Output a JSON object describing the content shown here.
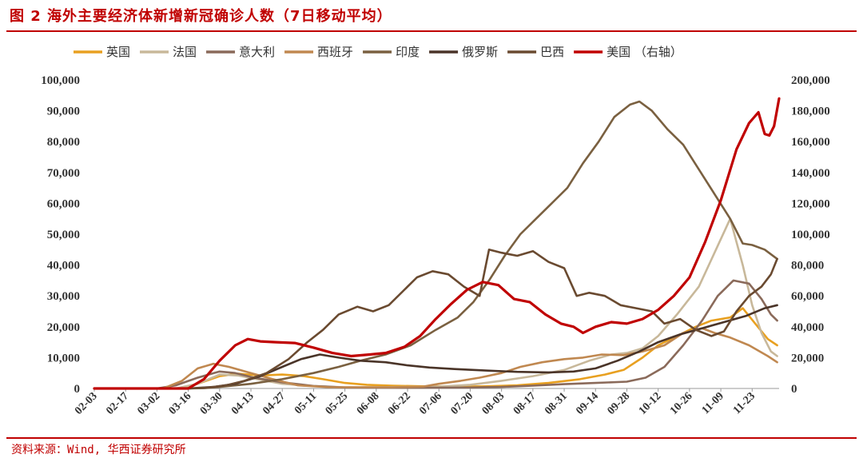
{
  "figure": {
    "title": "图 2   海外主要经济体新增新冠确诊人数（7日移动平均）",
    "source": "资料来源：Wind, 华西证券研究所"
  },
  "chart_data": {
    "type": "line",
    "title": "海外主要经济体新增新冠确诊人数（7日移动平均）",
    "ylim": [
      0,
      100000
    ],
    "y2lim": [
      0,
      200000
    ],
    "yticks": [
      "0",
      "10,000",
      "20,000",
      "30,000",
      "40,000",
      "50,000",
      "60,000",
      "70,000",
      "80,000",
      "90,000",
      "100,000"
    ],
    "y2ticks": [
      "0",
      "20,000",
      "40,000",
      "60,000",
      "80,000",
      "100,000",
      "120,000",
      "140,000",
      "160,000",
      "180,000",
      "200,000"
    ],
    "x_labels": [
      "02-03",
      "02-17",
      "03-02",
      "03-16",
      "03-30",
      "04-13",
      "04-27",
      "05-11",
      "05-25",
      "06-08",
      "06-22",
      "07-06",
      "07-20",
      "08-03",
      "08-17",
      "08-31",
      "09-14",
      "09-28",
      "10-12",
      "10-26",
      "11-09",
      "11-23"
    ],
    "x_range": [
      0,
      21.86
    ],
    "series": [
      {
        "name": "英国",
        "color": "#e8a020",
        "axis": "left",
        "points": [
          [
            0,
            0
          ],
          [
            2.8,
            0
          ],
          [
            3.3,
            1500
          ],
          [
            4.0,
            4000
          ],
          [
            4.6,
            4800
          ],
          [
            5.3,
            4200
          ],
          [
            6.0,
            4500
          ],
          [
            6.7,
            4000
          ],
          [
            7.3,
            3000
          ],
          [
            8.0,
            1800
          ],
          [
            8.7,
            1200
          ],
          [
            9.5,
            900
          ],
          [
            10.5,
            700
          ],
          [
            11.5,
            600
          ],
          [
            12.5,
            700
          ],
          [
            13.5,
            1000
          ],
          [
            14.5,
            1800
          ],
          [
            15.5,
            3000
          ],
          [
            16.3,
            4500
          ],
          [
            16.9,
            6000
          ],
          [
            17.5,
            10000
          ],
          [
            18.0,
            14000
          ],
          [
            18.6,
            17000
          ],
          [
            19.2,
            20000
          ],
          [
            19.7,
            22000
          ],
          [
            20.3,
            23000
          ],
          [
            20.7,
            26000
          ],
          [
            21.1,
            21000
          ],
          [
            21.5,
            16000
          ],
          [
            21.8,
            14000
          ]
        ]
      },
      {
        "name": "法国",
        "color": "#c8b89a",
        "axis": "left",
        "points": [
          [
            0,
            0
          ],
          [
            2.6,
            0
          ],
          [
            3.3,
            1500
          ],
          [
            4.0,
            4500
          ],
          [
            4.6,
            4200
          ],
          [
            5.2,
            3000
          ],
          [
            6.0,
            1500
          ],
          [
            7.0,
            800
          ],
          [
            8.0,
            400
          ],
          [
            9.0,
            400
          ],
          [
            10.0,
            500
          ],
          [
            11.0,
            600
          ],
          [
            12.0,
            1200
          ],
          [
            13.0,
            2500
          ],
          [
            14.0,
            4000
          ],
          [
            15.0,
            6000
          ],
          [
            15.8,
            9000
          ],
          [
            16.5,
            11000
          ],
          [
            17.0,
            11500
          ],
          [
            17.5,
            13000
          ],
          [
            18.0,
            17000
          ],
          [
            18.6,
            24000
          ],
          [
            19.3,
            33000
          ],
          [
            19.8,
            44000
          ],
          [
            20.3,
            55000
          ],
          [
            20.7,
            40000
          ],
          [
            21.0,
            27000
          ],
          [
            21.3,
            18000
          ],
          [
            21.6,
            12000
          ],
          [
            21.8,
            10500
          ]
        ]
      },
      {
        "name": "意大利",
        "color": "#8a6a5a",
        "axis": "left",
        "points": [
          [
            0,
            0
          ],
          [
            2.0,
            0
          ],
          [
            2.6,
            1000
          ],
          [
            3.3,
            3500
          ],
          [
            4.0,
            5500
          ],
          [
            4.5,
            5000
          ],
          [
            5.1,
            3500
          ],
          [
            6.0,
            2000
          ],
          [
            7.0,
            800
          ],
          [
            8.0,
            300
          ],
          [
            9.0,
            250
          ],
          [
            10.0,
            200
          ],
          [
            11.0,
            250
          ],
          [
            12.0,
            300
          ],
          [
            13.0,
            500
          ],
          [
            14.0,
            900
          ],
          [
            15.0,
            1400
          ],
          [
            16.0,
            1800
          ],
          [
            17.0,
            2200
          ],
          [
            17.6,
            3500
          ],
          [
            18.2,
            7000
          ],
          [
            18.8,
            14000
          ],
          [
            19.4,
            22000
          ],
          [
            19.9,
            30000
          ],
          [
            20.4,
            35000
          ],
          [
            20.9,
            34000
          ],
          [
            21.3,
            29000
          ],
          [
            21.6,
            24000
          ],
          [
            21.8,
            22000
          ]
        ]
      },
      {
        "name": "西班牙",
        "color": "#c08850",
        "axis": "left",
        "points": [
          [
            0,
            0
          ],
          [
            2.2,
            0
          ],
          [
            2.8,
            2500
          ],
          [
            3.3,
            6500
          ],
          [
            3.8,
            8000
          ],
          [
            4.3,
            7000
          ],
          [
            5.0,
            5000
          ],
          [
            5.7,
            3000
          ],
          [
            6.5,
            1000
          ],
          [
            7.5,
            400
          ],
          [
            8.5,
            400
          ],
          [
            9.5,
            400
          ],
          [
            10.5,
            600
          ],
          [
            11.0,
            1500
          ],
          [
            11.7,
            2500
          ],
          [
            12.3,
            3500
          ],
          [
            13.0,
            5000
          ],
          [
            13.6,
            7000
          ],
          [
            14.3,
            8500
          ],
          [
            15.0,
            9500
          ],
          [
            15.6,
            10000
          ],
          [
            16.2,
            11000
          ],
          [
            16.9,
            10800
          ],
          [
            17.5,
            12000
          ],
          [
            18.2,
            14000
          ],
          [
            18.8,
            18000
          ],
          [
            19.4,
            19500
          ],
          [
            19.8,
            18000
          ],
          [
            20.3,
            16500
          ],
          [
            20.9,
            14000
          ],
          [
            21.5,
            10500
          ],
          [
            21.8,
            8500
          ]
        ]
      },
      {
        "name": "印度",
        "color": "#7a6040",
        "axis": "left",
        "points": [
          [
            0,
            0
          ],
          [
            3.0,
            0
          ],
          [
            3.5,
            100
          ],
          [
            4.0,
            500
          ],
          [
            5.0,
            1500
          ],
          [
            6.0,
            3000
          ],
          [
            7.0,
            5000
          ],
          [
            7.8,
            7000
          ],
          [
            8.5,
            9000
          ],
          [
            9.3,
            11000
          ],
          [
            10.1,
            14000
          ],
          [
            10.9,
            19000
          ],
          [
            11.6,
            23000
          ],
          [
            12.1,
            28000
          ],
          [
            12.6,
            35000
          ],
          [
            13.1,
            43000
          ],
          [
            13.6,
            50000
          ],
          [
            14.1,
            55000
          ],
          [
            14.6,
            60000
          ],
          [
            15.1,
            65000
          ],
          [
            15.6,
            73000
          ],
          [
            16.1,
            80000
          ],
          [
            16.6,
            88000
          ],
          [
            17.1,
            92000
          ],
          [
            17.4,
            93000
          ],
          [
            17.8,
            90000
          ],
          [
            18.3,
            84000
          ],
          [
            18.8,
            79000
          ],
          [
            19.3,
            71000
          ],
          [
            19.8,
            63000
          ],
          [
            20.3,
            55000
          ],
          [
            20.7,
            47000
          ],
          [
            21.0,
            46500
          ],
          [
            21.4,
            45000
          ],
          [
            21.8,
            42000
          ]
        ]
      },
      {
        "name": "俄罗斯",
        "color": "#4a3428",
        "axis": "left",
        "points": [
          [
            0,
            0
          ],
          [
            3.0,
            0
          ],
          [
            3.8,
            500
          ],
          [
            4.5,
            1500
          ],
          [
            5.3,
            4000
          ],
          [
            6.0,
            7000
          ],
          [
            6.6,
            9500
          ],
          [
            7.2,
            11000
          ],
          [
            7.8,
            10000
          ],
          [
            8.5,
            9000
          ],
          [
            9.3,
            8500
          ],
          [
            10.0,
            7500
          ],
          [
            10.7,
            6800
          ],
          [
            11.5,
            6300
          ],
          [
            12.5,
            5800
          ],
          [
            13.5,
            5400
          ],
          [
            14.5,
            5200
          ],
          [
            15.3,
            5500
          ],
          [
            16.0,
            6500
          ],
          [
            16.7,
            9000
          ],
          [
            17.4,
            12000
          ],
          [
            18.0,
            15000
          ],
          [
            18.7,
            17500
          ],
          [
            19.4,
            19500
          ],
          [
            20.1,
            21500
          ],
          [
            20.8,
            23500
          ],
          [
            21.4,
            26000
          ],
          [
            21.8,
            27000
          ]
        ]
      },
      {
        "name": "巴西",
        "color": "#6a4a30",
        "axis": "left",
        "points": [
          [
            0,
            0
          ],
          [
            3.0,
            0
          ],
          [
            3.6,
            200
          ],
          [
            4.2,
            1000
          ],
          [
            4.8,
            2500
          ],
          [
            5.5,
            5000
          ],
          [
            6.2,
            9500
          ],
          [
            6.8,
            15000
          ],
          [
            7.3,
            19000
          ],
          [
            7.8,
            24000
          ],
          [
            8.4,
            26500
          ],
          [
            8.9,
            25000
          ],
          [
            9.4,
            27000
          ],
          [
            9.9,
            32000
          ],
          [
            10.3,
            36000
          ],
          [
            10.8,
            38000
          ],
          [
            11.3,
            37000
          ],
          [
            11.8,
            33000
          ],
          [
            12.3,
            30000
          ],
          [
            12.6,
            45000
          ],
          [
            13.0,
            44000
          ],
          [
            13.5,
            43000
          ],
          [
            14.0,
            44500
          ],
          [
            14.5,
            41000
          ],
          [
            15.0,
            39000
          ],
          [
            15.4,
            30000
          ],
          [
            15.8,
            31000
          ],
          [
            16.3,
            30000
          ],
          [
            16.8,
            27000
          ],
          [
            17.3,
            26000
          ],
          [
            17.8,
            25000
          ],
          [
            18.2,
            21000
          ],
          [
            18.7,
            22500
          ],
          [
            19.2,
            19000
          ],
          [
            19.7,
            17000
          ],
          [
            20.1,
            18500
          ],
          [
            20.5,
            25000
          ],
          [
            20.9,
            30000
          ],
          [
            21.3,
            33000
          ],
          [
            21.6,
            37000
          ],
          [
            21.8,
            42000
          ]
        ]
      },
      {
        "name": "美国 （右轴）",
        "color": "#c00000",
        "axis": "right",
        "points": [
          [
            0,
            0
          ],
          [
            3.0,
            0
          ],
          [
            3.5,
            6000
          ],
          [
            4.0,
            18000
          ],
          [
            4.5,
            28000
          ],
          [
            4.9,
            32000
          ],
          [
            5.3,
            30500
          ],
          [
            5.8,
            30000
          ],
          [
            6.4,
            29500
          ],
          [
            7.0,
            26500
          ],
          [
            7.6,
            23000
          ],
          [
            8.2,
            21000
          ],
          [
            8.8,
            22000
          ],
          [
            9.3,
            23000
          ],
          [
            9.9,
            27000
          ],
          [
            10.4,
            34000
          ],
          [
            10.9,
            45000
          ],
          [
            11.4,
            55000
          ],
          [
            11.9,
            64000
          ],
          [
            12.4,
            69000
          ],
          [
            12.9,
            67000
          ],
          [
            13.4,
            58000
          ],
          [
            13.9,
            56000
          ],
          [
            14.4,
            48000
          ],
          [
            14.9,
            42000
          ],
          [
            15.3,
            40000
          ],
          [
            15.6,
            36000
          ],
          [
            16.0,
            40000
          ],
          [
            16.5,
            43000
          ],
          [
            17.0,
            42000
          ],
          [
            17.5,
            45000
          ],
          [
            18.0,
            51000
          ],
          [
            18.5,
            60000
          ],
          [
            19.0,
            72000
          ],
          [
            19.5,
            95000
          ],
          [
            20.0,
            122000
          ],
          [
            20.5,
            155000
          ],
          [
            20.9,
            172000
          ],
          [
            21.2,
            179000
          ],
          [
            21.4,
            165000
          ],
          [
            21.55,
            164000
          ],
          [
            21.7,
            170000
          ],
          [
            21.86,
            188000
          ]
        ]
      }
    ]
  }
}
